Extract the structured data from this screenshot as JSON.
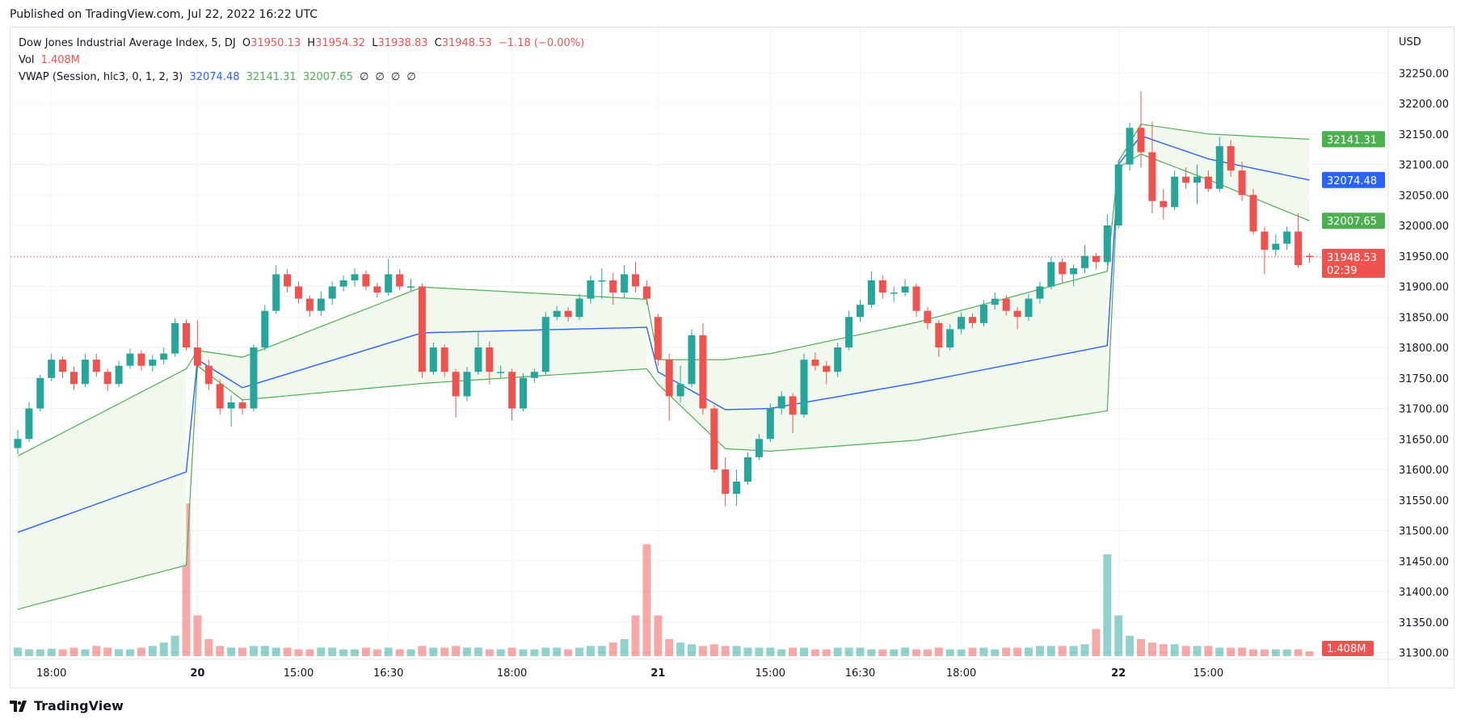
{
  "published": "Published on TradingView.com, Jul 22, 2022 16:22 UTC",
  "legend": {
    "symbol": "Dow Jones Industrial Average Index, 5, DJ",
    "o_label": "O",
    "o": "31950.13",
    "h_label": "H",
    "h": "31954.32",
    "l_label": "L",
    "l": "31938.83",
    "c_label": "C",
    "c": "31948.53",
    "change": "−1.18 (−0.00%)",
    "vol_label": "Vol",
    "vol": "1.408M",
    "vwap_label": "VWAP (Session, hlc3, 0, 1, 2, 3)",
    "vwap": "32074.48",
    "upper": "32141.31",
    "lower": "32007.65",
    "empty": [
      "∅",
      "∅",
      "∅",
      "∅"
    ]
  },
  "logo": "TradingView",
  "colors": {
    "up": "#26a69a",
    "down": "#ef5350",
    "vwap": "#2962ff",
    "band": "#4caf50",
    "band_fill": "#f1f8ee",
    "grid": "#f0f3fa"
  },
  "chart_data": {
    "type": "candlestick",
    "currency": "USD",
    "ylim": [
      31300,
      32250
    ],
    "y_ticks": [
      "32250.00",
      "32200.00",
      "32150.00",
      "32100.00",
      "32050.00",
      "32000.00",
      "31950.00",
      "31900.00",
      "31850.00",
      "31800.00",
      "31750.00",
      "31700.00",
      "31650.00",
      "31600.00",
      "31550.00",
      "31500.00",
      "31450.00",
      "31400.00",
      "31350.00",
      "31300.00"
    ],
    "time_ticks": [
      {
        "label": "18:00",
        "at_bar": 3
      },
      {
        "label": "20",
        "at_bar": 16,
        "bold": true
      },
      {
        "label": "15:00",
        "at_bar": 25
      },
      {
        "label": "16:30",
        "at_bar": 33
      },
      {
        "label": "18:00",
        "at_bar": 44
      },
      {
        "label": "21",
        "at_bar": 57,
        "bold": true
      },
      {
        "label": "15:00",
        "at_bar": 67
      },
      {
        "label": "16:30",
        "at_bar": 75
      },
      {
        "label": "18:00",
        "at_bar": 84
      },
      {
        "label": "22",
        "at_bar": 98,
        "bold": true
      },
      {
        "label": "15:00",
        "at_bar": 106
      }
    ],
    "price_labels": [
      {
        "value": 32141.31,
        "text": "32141.31",
        "color": "#4caf50"
      },
      {
        "value": 32074.48,
        "text": "32074.48",
        "color": "#2962ff"
      },
      {
        "value": 32007.65,
        "text": "32007.65",
        "color": "#4caf50"
      },
      {
        "value": 31948.53,
        "text": "31948.53",
        "sub": "02:39",
        "color": "#ef5350"
      }
    ],
    "volume_label": "1.408M",
    "last_price": 31948.53,
    "ohlc": [
      [
        31635,
        31665,
        31625,
        31650
      ],
      [
        31650,
        31710,
        31645,
        31700
      ],
      [
        31700,
        31755,
        31695,
        31750
      ],
      [
        31750,
        31790,
        31745,
        31780
      ],
      [
        31780,
        31785,
        31750,
        31760
      ],
      [
        31760,
        31768,
        31730,
        31740
      ],
      [
        31740,
        31790,
        31735,
        31780
      ],
      [
        31780,
        31790,
        31752,
        31760
      ],
      [
        31760,
        31765,
        31728,
        31740
      ],
      [
        31740,
        31778,
        31735,
        31770
      ],
      [
        31770,
        31798,
        31765,
        31790
      ],
      [
        31790,
        31795,
        31762,
        31770
      ],
      [
        31770,
        31788,
        31760,
        31780
      ],
      [
        31780,
        31800,
        31772,
        31790
      ],
      [
        31790,
        31848,
        31785,
        31840
      ],
      [
        31840,
        31846,
        31795,
        31800
      ],
      [
        31800,
        31845,
        31765,
        31770
      ],
      [
        31770,
        31780,
        31730,
        31740
      ],
      [
        31740,
        31748,
        31690,
        31700
      ],
      [
        31700,
        31722,
        31670,
        31710
      ],
      [
        31710,
        31715,
        31690,
        31700
      ],
      [
        31700,
        31805,
        31695,
        31800
      ],
      [
        31800,
        31870,
        31795,
        31860
      ],
      [
        31860,
        31935,
        31855,
        31920
      ],
      [
        31920,
        31928,
        31890,
        31900
      ],
      [
        31900,
        31908,
        31872,
        31880
      ],
      [
        31880,
        31885,
        31850,
        31860
      ],
      [
        31860,
        31892,
        31852,
        31880
      ],
      [
        31880,
        31908,
        31870,
        31900
      ],
      [
        31900,
        31918,
        31892,
        31910
      ],
      [
        31910,
        31930,
        31900,
        31920
      ],
      [
        31920,
        31926,
        31894,
        31900
      ],
      [
        31900,
        31906,
        31882,
        31890
      ],
      [
        31890,
        31945,
        31885,
        31920
      ],
      [
        31920,
        31928,
        31894,
        31900
      ],
      [
        31900,
        31912,
        31892,
        31900
      ],
      [
        31900,
        31905,
        31750,
        31760
      ],
      [
        31760,
        31808,
        31755,
        31800
      ],
      [
        31800,
        31805,
        31752,
        31760
      ],
      [
        31760,
        31765,
        31685,
        31720
      ],
      [
        31720,
        31768,
        31712,
        31760
      ],
      [
        31760,
        31825,
        31755,
        31800
      ],
      [
        31800,
        31810,
        31740,
        31760
      ],
      [
        31760,
        31770,
        31750,
        31760
      ],
      [
        31760,
        31765,
        31680,
        31700
      ],
      [
        31700,
        31758,
        31695,
        31750
      ],
      [
        31750,
        31765,
        31742,
        31760
      ],
      [
        31760,
        31858,
        31755,
        31850
      ],
      [
        31850,
        31868,
        31845,
        31860
      ],
      [
        31860,
        31866,
        31842,
        31850
      ],
      [
        31850,
        31888,
        31845,
        31880
      ],
      [
        31880,
        31918,
        31872,
        31910
      ],
      [
        31910,
        31930,
        31880,
        31910
      ],
      [
        31910,
        31922,
        31870,
        31890
      ],
      [
        31890,
        31935,
        31882,
        31920
      ],
      [
        31920,
        31940,
        31890,
        31900
      ],
      [
        31900,
        31910,
        31870,
        31880
      ],
      [
        31850,
        31855,
        31770,
        31780
      ],
      [
        31780,
        31790,
        31680,
        31720
      ],
      [
        31720,
        31770,
        31710,
        31740
      ],
      [
        31740,
        31830,
        31735,
        31820
      ],
      [
        31820,
        31840,
        31690,
        31700
      ],
      [
        31700,
        31705,
        31595,
        31600
      ],
      [
        31600,
        31620,
        31540,
        31560
      ],
      [
        31560,
        31600,
        31540,
        31580
      ],
      [
        31580,
        31628,
        31575,
        31620
      ],
      [
        31620,
        31658,
        31615,
        31650
      ],
      [
        31650,
        31708,
        31645,
        31700
      ],
      [
        31700,
        31728,
        31690,
        31720
      ],
      [
        31720,
        31725,
        31660,
        31690
      ],
      [
        31690,
        31790,
        31685,
        31780
      ],
      [
        31780,
        31792,
        31762,
        31770
      ],
      [
        31770,
        31778,
        31740,
        31760
      ],
      [
        31760,
        31808,
        31752,
        31800
      ],
      [
        31800,
        31860,
        31795,
        31850
      ],
      [
        31850,
        31878,
        31842,
        31870
      ],
      [
        31870,
        31925,
        31865,
        31910
      ],
      [
        31910,
        31918,
        31880,
        31890
      ],
      [
        31890,
        31900,
        31875,
        31890
      ],
      [
        31890,
        31912,
        31884,
        31900
      ],
      [
        31900,
        31905,
        31850,
        31860
      ],
      [
        31860,
        31866,
        31830,
        31840
      ],
      [
        31840,
        31845,
        31785,
        31800
      ],
      [
        31800,
        31838,
        31795,
        31830
      ],
      [
        31830,
        31858,
        31822,
        31850
      ],
      [
        31850,
        31856,
        31832,
        31840
      ],
      [
        31840,
        31878,
        31834,
        31870
      ],
      [
        31870,
        31890,
        31862,
        31880
      ],
      [
        31880,
        31886,
        31852,
        31860
      ],
      [
        31860,
        31866,
        31830,
        31850
      ],
      [
        31850,
        31888,
        31844,
        31880
      ],
      [
        31880,
        31908,
        31872,
        31900
      ],
      [
        31900,
        31948,
        31895,
        31940
      ],
      [
        31940,
        31946,
        31905,
        31920
      ],
      [
        31920,
        31936,
        31900,
        31930
      ],
      [
        31930,
        31968,
        31922,
        31950
      ],
      [
        31950,
        31955,
        31928,
        31940
      ],
      [
        31940,
        32018,
        31935,
        32000
      ],
      [
        32000,
        32108,
        31995,
        32100
      ],
      [
        32100,
        32168,
        32090,
        32160
      ],
      [
        32160,
        32220,
        32095,
        32120
      ],
      [
        32120,
        32170,
        32020,
        32040
      ],
      [
        32040,
        32060,
        32010,
        32030
      ],
      [
        32030,
        32090,
        32025,
        32080
      ],
      [
        32080,
        32095,
        32060,
        32070
      ],
      [
        32070,
        32100,
        32035,
        32080
      ],
      [
        32080,
        32090,
        32055,
        32060
      ],
      [
        32060,
        32145,
        32055,
        32130
      ],
      [
        32130,
        32140,
        32080,
        32090
      ],
      [
        32090,
        32105,
        32040,
        32050
      ],
      [
        32050,
        32060,
        31985,
        31990
      ],
      [
        31990,
        31998,
        31920,
        31960
      ],
      [
        31960,
        31985,
        31950,
        31970
      ],
      [
        31970,
        31998,
        31960,
        31990
      ],
      [
        31990,
        32020,
        31930,
        31935
      ],
      [
        31950.13,
        31954.32,
        31938.83,
        31948.53
      ]
    ],
    "volume_millions": [
      2.5,
      2,
      2,
      2.2,
      2,
      2.5,
      2,
      3,
      2.5,
      2,
      2,
      2.5,
      3,
      4,
      6,
      45,
      12,
      5,
      3,
      2.5,
      2.5,
      3,
      3,
      2.5,
      2.5,
      2,
      2,
      2.5,
      2.5,
      2,
      2,
      2.5,
      2,
      2.5,
      2,
      2,
      3,
      2.5,
      2.5,
      3,
      2.5,
      2.5,
      2,
      2,
      2.5,
      2,
      2,
      2.5,
      2.5,
      2,
      2.5,
      3,
      3,
      4,
      5,
      12,
      33,
      12,
      5,
      4,
      3.5,
      3,
      3.5,
      3,
      3,
      2.5,
      2.5,
      2.5,
      2,
      2.5,
      2.5,
      2,
      2,
      2.5,
      2.5,
      2.5,
      2,
      2,
      2,
      2.5,
      2,
      2,
      2.5,
      2,
      2,
      2.5,
      2.5,
      2,
      2.5,
      2.5,
      2.5,
      3,
      3,
      3,
      3,
      3.5,
      8,
      30,
      12,
      6,
      5,
      4,
      3.5,
      3.5,
      3,
      3,
      3,
      2.5,
      2.5,
      2.5,
      2,
      2,
      2,
      2,
      2,
      1.408
    ],
    "vwap_anchors": [
      {
        "bar": 0,
        "vwap": 31497,
        "upper": 31622,
        "lower": 31371
      },
      {
        "bar": 15,
        "vwap": 31596,
        "upper": 31765,
        "lower": 31443
      },
      {
        "bar": 16,
        "vwap": 31780,
        "upper": 31795,
        "lower": 31770
      },
      {
        "bar": 20,
        "vwap": 31734,
        "upper": 31784,
        "lower": 31714
      },
      {
        "bar": 36,
        "vwap": 31824,
        "upper": 31899,
        "lower": 31741
      },
      {
        "bar": 56,
        "vwap": 31833,
        "upper": 31879,
        "lower": 31765
      },
      {
        "bar": 57,
        "vwap": 31760,
        "upper": 31780,
        "lower": 31740
      },
      {
        "bar": 63,
        "vwap": 31698,
        "upper": 31780,
        "lower": 31634
      },
      {
        "bar": 67,
        "vwap": 31700,
        "upper": 31790,
        "lower": 31630
      },
      {
        "bar": 80,
        "vwap": 31742,
        "upper": 31841,
        "lower": 31648
      },
      {
        "bar": 97,
        "vwap": 31803,
        "upper": 31925,
        "lower": 31696
      },
      {
        "bar": 98,
        "vwap": 32100,
        "upper": 32105,
        "lower": 32095
      },
      {
        "bar": 100,
        "vwap": 32147,
        "upper": 32166,
        "lower": 32117
      },
      {
        "bar": 106,
        "vwap": 32109,
        "upper": 32150,
        "lower": 32075
      },
      {
        "bar": 115,
        "vwap": 32074.48,
        "upper": 32141.31,
        "lower": 32007.65
      }
    ]
  }
}
